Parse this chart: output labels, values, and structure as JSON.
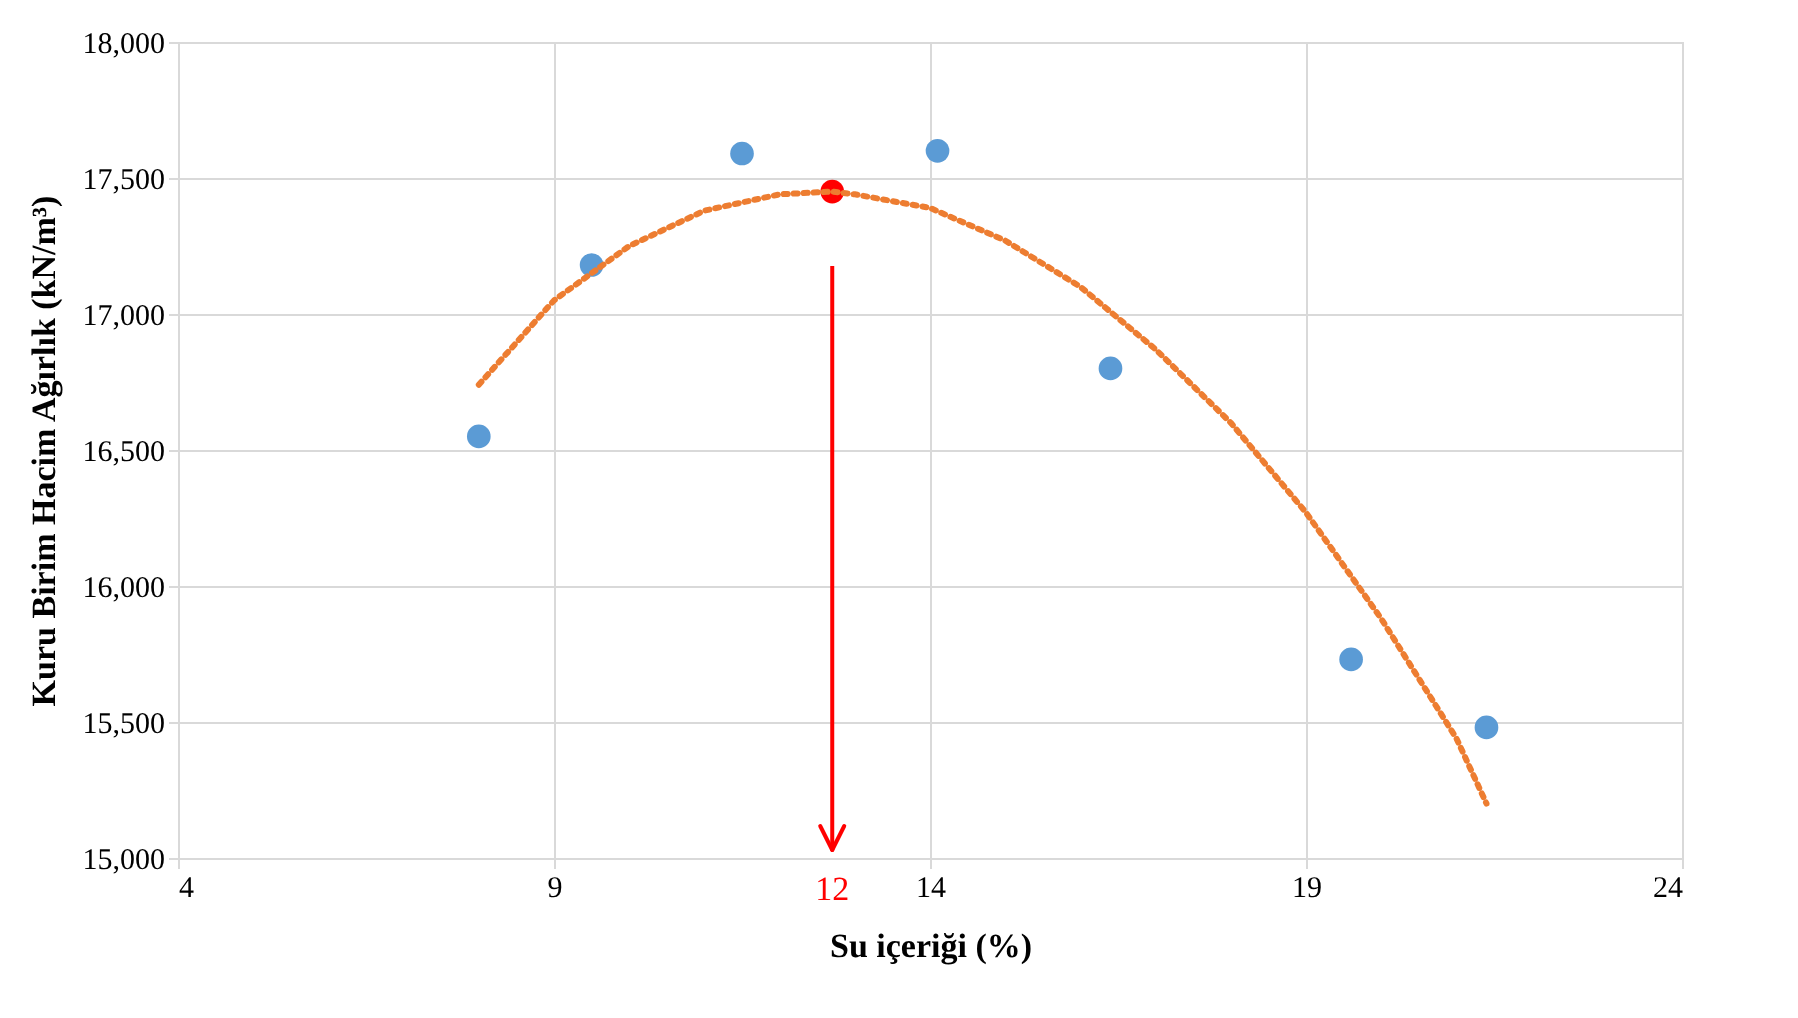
{
  "chart_data": {
    "type": "scatter",
    "xlabel": "Su içeriği (%)",
    "ylabel": "Kuru Birim Hacim Ağırlık (kN/m³)",
    "xlim": [
      4,
      24
    ],
    "xticks": [
      4,
      9,
      14,
      19,
      24
    ],
    "ylim": [
      15000,
      18000
    ],
    "yticks": [
      {
        "value": 15000,
        "label": "15,000"
      },
      {
        "value": 15500,
        "label": "15,500"
      },
      {
        "value": 16000,
        "label": "16,000"
      },
      {
        "value": 16500,
        "label": "16,500"
      },
      {
        "value": 17000,
        "label": "17,000"
      },
      {
        "value": 17500,
        "label": "17,500"
      },
      {
        "value": 18000,
        "label": "18,000"
      }
    ],
    "grid": true,
    "marker": "circle",
    "series": [
      {
        "color": "#5b9bd5",
        "x": [
          8.0,
          9.5,
          11.5,
          14.1,
          16.4,
          19.6,
          21.4
        ],
        "values": [
          16550,
          17180,
          17590,
          17600,
          16800,
          15730,
          15480
        ]
      },
      {
        "color": "#ff0000",
        "x": [
          12.7
        ],
        "values": [
          17450
        ]
      },
      {
        "type": "line",
        "color": "#ed7d31",
        "line_style": "dotted",
        "marker": "none",
        "x": [
          8,
          9,
          10,
          11,
          12,
          12.7,
          13,
          14,
          15,
          16,
          17,
          18,
          19,
          20,
          21,
          21.4
        ],
        "values": [
          16740,
          17050,
          17250,
          17380,
          17440,
          17450,
          17440,
          17390,
          17270,
          17100,
          16870,
          16600,
          16270,
          15880,
          15440,
          15200
        ]
      }
    ],
    "ref_lines": [
      {
        "axis": "x",
        "value": 12.7,
        "color": "#ff0000"
      }
    ],
    "annotations": [
      {
        "text": "12",
        "x": 12.7,
        "y": 15000
      }
    ]
  }
}
